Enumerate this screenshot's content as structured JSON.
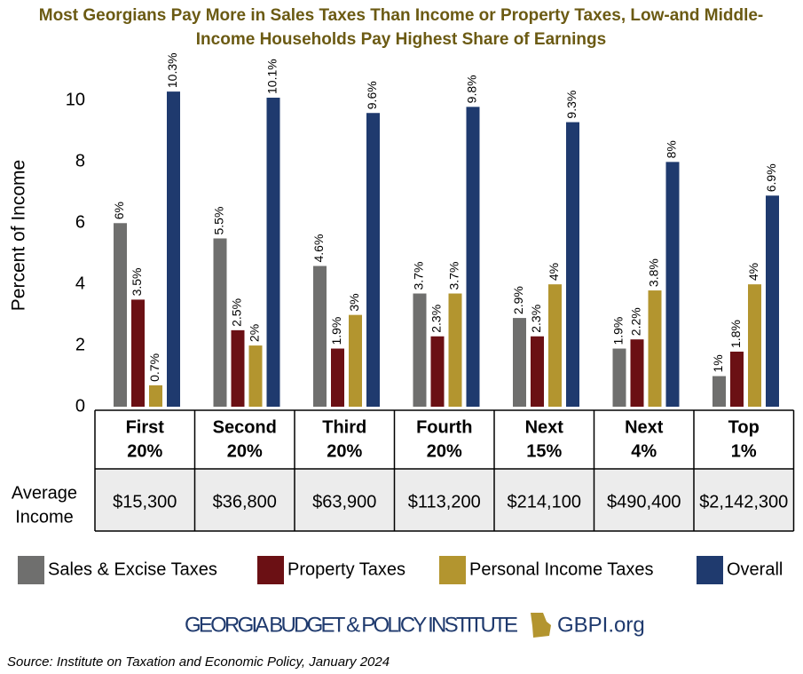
{
  "chart_data": {
    "type": "bar",
    "title": "Most Georgians Pay More in Sales Taxes Than Income or Property Taxes, Low-and Middle-Income Households Pay Highest Share of Earnings",
    "y_label": "Percent of Income",
    "categories": [
      [
        "First",
        "20%"
      ],
      [
        "Second",
        "20%"
      ],
      [
        "Third",
        "20%"
      ],
      [
        "Fourth",
        "20%"
      ],
      [
        "Next",
        "15%"
      ],
      [
        "Next",
        "4%"
      ],
      [
        "Top",
        "1%"
      ]
    ],
    "series": [
      {
        "name": "Sales & Excise Taxes",
        "color": "#6f6f6e",
        "values": [
          6,
          5.5,
          4.6,
          3.7,
          2.9,
          1.9,
          1
        ],
        "value_labels": [
          "6%",
          "5.5%",
          "4.6%",
          "3.7%",
          "2.9%",
          "1.9%",
          "1%"
        ]
      },
      {
        "name": "Property Taxes",
        "color": "#6b1014",
        "values": [
          3.5,
          2.5,
          1.9,
          2.3,
          2.3,
          2.2,
          1.8
        ],
        "value_labels": [
          "3.5%",
          "2.5%",
          "1.9%",
          "2.3%",
          "2.3%",
          "2.2%",
          "1.8%"
        ]
      },
      {
        "name": "Personal Income Taxes",
        "color": "#b3952f",
        "values": [
          0.7,
          2,
          3,
          3.7,
          4,
          3.8,
          4
        ],
        "value_labels": [
          "0.7%",
          "2%",
          "3%",
          "3.7%",
          "4%",
          "3.8%",
          "4%"
        ]
      },
      {
        "name": "Overall",
        "color": "#1f3a6e",
        "values": [
          10.3,
          10.1,
          9.6,
          9.8,
          9.3,
          8,
          6.9
        ],
        "value_labels": [
          "10.3%",
          "10.1%",
          "9.6%",
          "9.8%",
          "9.3%",
          "8%",
          "6.9%"
        ]
      }
    ],
    "average_income_label": [
      "Average",
      "Income"
    ],
    "average_income": [
      "$15,300",
      "$36,800",
      "$63,900",
      "$113,200",
      "$214,100",
      "$490,400",
      "$2,142,300"
    ],
    "ylim": [
      0,
      11
    ],
    "yticks": [
      0,
      2,
      4,
      6,
      8,
      10
    ],
    "grid": false,
    "footer": "GEORGIA BUDGET & POLICY INSTITUTE",
    "website": "GBPI.org",
    "source": "Source: Institute on Taxation and Economic Policy, January 2024"
  }
}
